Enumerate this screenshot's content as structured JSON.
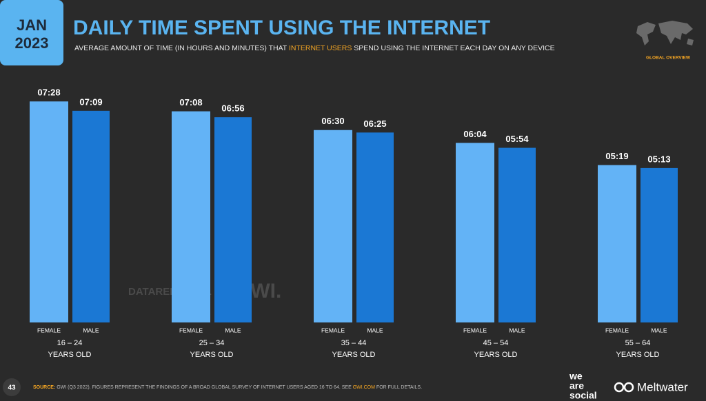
{
  "header": {
    "month": "JAN",
    "year": "2023",
    "title": "DAILY TIME SPENT USING THE INTERNET",
    "subtitle_before": "AVERAGE AMOUNT OF TIME (IN HOURS AND MINUTES) THAT ",
    "subtitle_highlight": "INTERNET USERS",
    "subtitle_after": " SPEND USING THE INTERNET EACH DAY ON ANY DEVICE",
    "badge": "GLOBAL OVERVIEW"
  },
  "chart_data": {
    "type": "bar",
    "categories": [
      "16 – 24",
      "25 – 34",
      "35 – 44",
      "45 – 54",
      "55 – 64"
    ],
    "category_suffix": "YEARS OLD",
    "series": [
      {
        "name": "FEMALE",
        "color": "#63b3f6",
        "values": [
          448,
          428,
          390,
          364,
          319
        ],
        "value_labels": [
          "07:28",
          "07:08",
          "06:30",
          "06:04",
          "05:19"
        ]
      },
      {
        "name": "MALE",
        "color": "#1b78d4",
        "values": [
          429,
          416,
          385,
          354,
          313
        ],
        "value_labels": [
          "07:09",
          "06:56",
          "06:25",
          "05:54",
          "05:13"
        ]
      }
    ],
    "ylim": [
      0,
      500
    ]
  },
  "watermarks": {
    "datareportal": "DATAREPORTAL",
    "gwi": "GWI."
  },
  "footer": {
    "page": "43",
    "source_label": "SOURCE:",
    "source_text": " GWI (Q3 2022). FIGURES REPRESENT THE FINDINGS OF A BROAD GLOBAL SURVEY OF INTERNET USERS AGED 16 TO 64. SEE ",
    "source_link": "GWI.COM",
    "source_end": " FOR FULL DETAILS.",
    "brand1_line1": "we",
    "brand1_line2": "are",
    "brand1_line3": "social",
    "brand2": "Meltwater"
  }
}
